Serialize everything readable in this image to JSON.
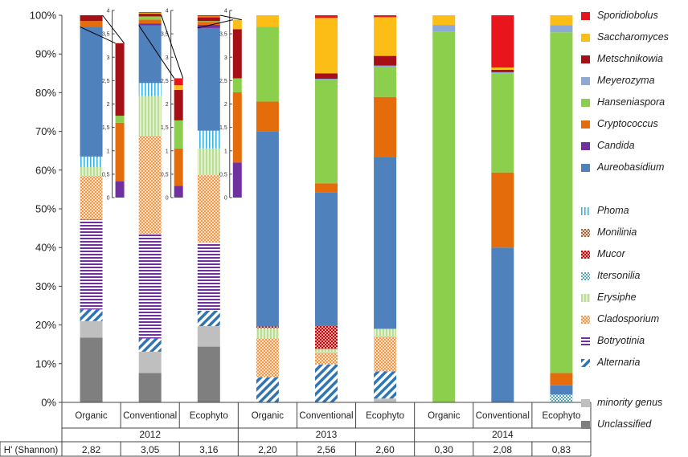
{
  "chart_data": {
    "type": "stacked-bar",
    "y_axis": {
      "ylim": [
        0,
        100
      ],
      "ticks": [
        "0%",
        "10%",
        "20%",
        "30%",
        "40%",
        "50%",
        "60%",
        "70%",
        "80%",
        "90%",
        "100%"
      ]
    },
    "x_axis": {
      "years": [
        "2012",
        "2013",
        "2014"
      ],
      "treatments": [
        "Organic",
        "Conventional",
        "Ecophyto"
      ],
      "row_label": "H' (Shannon)"
    },
    "categories": [
      "Organic",
      "Conventional",
      "Ecophyto",
      "Organic",
      "Conventional",
      "Ecophyto",
      "Organic",
      "Conventional",
      "Ecophyto"
    ],
    "category_years": [
      "2012",
      "2012",
      "2012",
      "2013",
      "2013",
      "2013",
      "2014",
      "2014",
      "2014"
    ],
    "shannon": [
      "2,82",
      "3,05",
      "3,16",
      "2,20",
      "2,56",
      "2,60",
      "0,30",
      "2,08",
      "0,83"
    ],
    "series_order": [
      "Unclassified",
      "minority genus",
      "Alternaria",
      "Botryotinia",
      "Cladosporium",
      "Erysiphe",
      "Itersonilia",
      "Mucor",
      "Monilinia",
      "Phoma",
      "Aureobasidium",
      "Candida",
      "Cryptococcus",
      "Hanseniaspora",
      "Meyerozyma",
      "Metschnikowia",
      "Saccharomyces",
      "Sporidiobolus"
    ],
    "bars": [
      {
        "Unclassified": 16.7,
        "minority genus": 4.3,
        "Alternaria": 3.0,
        "Botryotinia": 23.2,
        "Cladosporium": 11.3,
        "Erysiphe": 2.3,
        "Itersonilia": 0,
        "Mucor": 0,
        "Monilinia": 0,
        "Phoma": 2.7,
        "Aureobasidium": 33.5,
        "Candida": 0,
        "Cryptococcus": 1.5,
        "Hanseniaspora": 0,
        "Meyerozyma": 0,
        "Metschnikowia": 1.5,
        "Saccharomyces": 0,
        "Sporidiobolus": 0
      },
      {
        "Unclassified": 7.6,
        "minority genus": 5.5,
        "Alternaria": 3.4,
        "Botryotinia": 27.0,
        "Cladosporium": 25.4,
        "Erysiphe": 10.2,
        "Itersonilia": 0,
        "Mucor": 0,
        "Monilinia": 0,
        "Phoma": 3.4,
        "Aureobasidium": 14.9,
        "Candida": 0.5,
        "Cryptococcus": 1.0,
        "Hanseniaspora": 0.8,
        "Meyerozyma": 0,
        "Metschnikowia": 0.7,
        "Saccharomyces": 0.2,
        "Sporidiobolus": 0.2
      },
      {
        "Unclassified": 14.4,
        "minority genus": 5.3,
        "Alternaria": 4.0,
        "Botryotinia": 17.5,
        "Cladosporium": 17.5,
        "Erysiphe": 6.9,
        "Itersonilia": 0,
        "Mucor": 0,
        "Monilinia": 0,
        "Phoma": 4.6,
        "Aureobasidium": 26.5,
        "Candida": 0.8,
        "Cryptococcus": 0.8,
        "Hanseniaspora": 0.2,
        "Meyerozyma": 0,
        "Metschnikowia": 1.0,
        "Saccharomyces": 0.2,
        "Sporidiobolus": 0.3
      },
      {
        "Unclassified": 0,
        "minority genus": 0,
        "Alternaria": 6.5,
        "Botryotinia": 0,
        "Cladosporium": 10.0,
        "Erysiphe": 2.7,
        "Itersonilia": 0,
        "Mucor": 0.4,
        "Monilinia": 0,
        "Phoma": 0,
        "Aureobasidium": 50.4,
        "Candida": 0,
        "Cryptococcus": 7.7,
        "Hanseniaspora": 19.3,
        "Meyerozyma": 0,
        "Metschnikowia": 0,
        "Saccharomyces": 3.0,
        "Sporidiobolus": 0
      },
      {
        "Unclassified": 0,
        "minority genus": 0,
        "Alternaria": 9.8,
        "Botryotinia": 0,
        "Cladosporium": 3.1,
        "Erysiphe": 0.9,
        "Itersonilia": 0,
        "Mucor": 6.0,
        "Monilinia": 0,
        "Phoma": 0,
        "Aureobasidium": 34.5,
        "Candida": 0,
        "Cryptococcus": 2.3,
        "Hanseniaspora": 26.6,
        "Meyerozyma": 0.4,
        "Metschnikowia": 1.4,
        "Saccharomyces": 14.3,
        "Sporidiobolus": 0.7
      },
      {
        "Unclassified": 0,
        "minority genus": 1.0,
        "Alternaria": 7.0,
        "Botryotinia": 0,
        "Cladosporium": 9.0,
        "Erysiphe": 2.0,
        "Itersonilia": 0,
        "Mucor": 0,
        "Monilinia": 0,
        "Phoma": 0,
        "Aureobasidium": 44.4,
        "Candida": 0,
        "Cryptococcus": 15.5,
        "Hanseniaspora": 7.6,
        "Meyerozyma": 0.5,
        "Metschnikowia": 2.5,
        "Saccharomyces": 10.0,
        "Sporidiobolus": 0.5
      },
      {
        "Unclassified": 0,
        "minority genus": 0,
        "Alternaria": 0,
        "Botryotinia": 0,
        "Cladosporium": 0,
        "Erysiphe": 0,
        "Itersonilia": 0,
        "Mucor": 0,
        "Monilinia": 0,
        "Phoma": 0,
        "Aureobasidium": 0,
        "Candida": 0,
        "Cryptococcus": 0,
        "Hanseniaspora": 95.7,
        "Meyerozyma": 1.8,
        "Metschnikowia": 0,
        "Saccharomyces": 2.5,
        "Sporidiobolus": 0
      },
      {
        "Unclassified": 0,
        "minority genus": 0,
        "Alternaria": 0,
        "Botryotinia": 0,
        "Cladosporium": 0,
        "Erysiphe": 0,
        "Itersonilia": 0,
        "Mucor": 0,
        "Monilinia": 0,
        "Phoma": 0,
        "Aureobasidium": 40.0,
        "Candida": 0,
        "Cryptococcus": 19.4,
        "Hanseniaspora": 25.6,
        "Meyerozyma": 0.3,
        "Metschnikowia": 0.6,
        "Saccharomyces": 0.6,
        "Sporidiobolus": 13.5
      },
      {
        "Unclassified": 0,
        "minority genus": 0,
        "Alternaria": 0,
        "Botryotinia": 0,
        "Cladosporium": 0,
        "Erysiphe": 0,
        "Itersonilia": 2.0,
        "Mucor": 0,
        "Monilinia": 0,
        "Phoma": 0,
        "Aureobasidium": 2.4,
        "Candida": 0,
        "Cryptococcus": 3.2,
        "Hanseniaspora": 88.0,
        "Meyerozyma": 1.8,
        "Metschnikowia": 0,
        "Saccharomyces": 2.6,
        "Sporidiobolus": 0
      }
    ],
    "insets": {
      "ylim": [
        0,
        4
      ],
      "ticks": [
        "0",
        "0,5",
        "1",
        "1,5",
        "2",
        "2,5",
        "3",
        "3,5",
        "4"
      ],
      "series_order": [
        "Candida",
        "Cryptococcus",
        "Hanseniaspora",
        "Meyerozyma",
        "Metschnikowia",
        "Saccharomyces",
        "Sporidiobolus"
      ],
      "bars": [
        {
          "Candida": 0.35,
          "Cryptococcus": 1.25,
          "Hanseniaspora": 0.15,
          "Meyerozyma": 0,
          "Metschnikowia": 1.55,
          "Saccharomyces": 0,
          "Sporidiobolus": 0
        },
        {
          "Candida": 0.25,
          "Cryptococcus": 0.8,
          "Hanseniaspora": 0.6,
          "Meyerozyma": 0,
          "Metschnikowia": 0.65,
          "Saccharomyces": 0.1,
          "Sporidiobolus": 0.15
        },
        {
          "Candida": 0.75,
          "Cryptococcus": 1.5,
          "Hanseniaspora": 0.3,
          "Meyerozyma": 0,
          "Metschnikowia": 1.05,
          "Saccharomyces": 0.2,
          "Sporidiobolus": 0
        }
      ]
    },
    "legend": [
      {
        "name": "Sporidiobolus",
        "color": "#e8161c",
        "pattern": "solid"
      },
      {
        "name": "Saccharomyces",
        "color": "#fbbd16",
        "pattern": "solid"
      },
      {
        "name": "Metschnikowia",
        "color": "#a50f15",
        "pattern": "solid"
      },
      {
        "name": "Meyerozyma",
        "color": "#8fa9d6",
        "pattern": "solid"
      },
      {
        "name": "Hanseniaspora",
        "color": "#8ccf4d",
        "pattern": "solid"
      },
      {
        "name": "Cryptococcus",
        "color": "#e46c0a",
        "pattern": "solid"
      },
      {
        "name": "Candida",
        "color": "#7030a0",
        "pattern": "solid"
      },
      {
        "name": "Aureobasidium",
        "color": "#4f81bd",
        "pattern": "solid"
      },
      {
        "name": "Phoma",
        "color": "#31b4e8",
        "pattern": "vlines"
      },
      {
        "name": "Monilinia",
        "color": "#9c5a2e",
        "pattern": "dots"
      },
      {
        "name": "Mucor",
        "color": "#c00000",
        "pattern": "dots"
      },
      {
        "name": "Itersonilia",
        "color": "#4bacc6",
        "pattern": "checker"
      },
      {
        "name": "Erysiphe",
        "color": "#b6dd8f",
        "pattern": "vlines"
      },
      {
        "name": "Cladosporium",
        "color": "#f79646",
        "pattern": "checker"
      },
      {
        "name": "Botryotinia",
        "color": "#7030a0",
        "pattern": "hlines"
      },
      {
        "name": "Alternaria",
        "color": "#2e75b6",
        "pattern": "diag"
      },
      {
        "name": "minority genus",
        "color": "#bfbfbf",
        "pattern": "solid"
      },
      {
        "name": "Unclassified",
        "color": "#7f7f7f",
        "pattern": "solid"
      }
    ]
  }
}
